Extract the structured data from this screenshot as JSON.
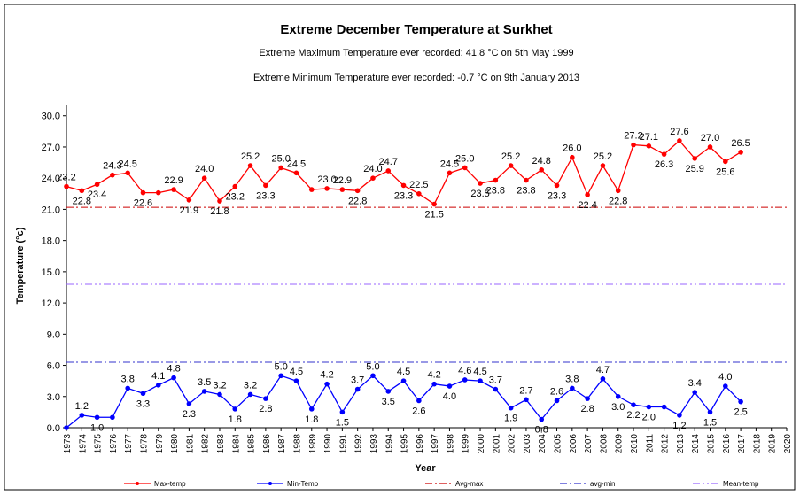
{
  "chart_data": {
    "type": "line",
    "title": "Extreme December Temperature at Surkhet",
    "subtitle": "Extreme Maximum  Temperature ever recorded: 41.8 °C on 5th May 1999",
    "subtitle2": "Extreme Minimum Temperature ever recorded: -0.7 °C on 9th January 2013",
    "x_label": "Year",
    "y_label": "Temperature (°c)",
    "x": [
      1973,
      1974,
      1975,
      1976,
      1977,
      1978,
      1979,
      1980,
      1981,
      1982,
      1983,
      1984,
      1985,
      1986,
      1987,
      1988,
      1989,
      1990,
      1991,
      1992,
      1993,
      1994,
      1995,
      1996,
      1997,
      1998,
      1999,
      2000,
      2001,
      2002,
      2003,
      2004,
      2005,
      2006,
      2007,
      2008,
      2009,
      2010,
      2011,
      2012,
      2013,
      2014,
      2015,
      2016,
      2017
    ],
    "series": [
      {
        "name": "Max-temp",
        "color": "#ff0000",
        "values": [
          23.2,
          22.8,
          23.4,
          24.3,
          24.5,
          22.6,
          22.6,
          22.9,
          21.9,
          24.0,
          21.8,
          23.2,
          25.2,
          23.3,
          25.0,
          24.5,
          22.9,
          23.0,
          22.9,
          22.8,
          24.0,
          24.7,
          23.3,
          22.5,
          21.5,
          24.5,
          25.0,
          23.5,
          23.8,
          25.2,
          23.8,
          24.8,
          23.3,
          26.0,
          22.4,
          25.2,
          22.8,
          27.2,
          27.1,
          26.3,
          27.6,
          25.9,
          27.0,
          25.6,
          26.5
        ],
        "value_labels": [
          "23.2",
          "22.8",
          "23.4",
          "24.3",
          "24.5",
          "22.6",
          null,
          "22.9",
          "21.9",
          "24.0",
          "21.8",
          "23.2",
          "25.2",
          "23.3",
          "25.0",
          "24.5",
          null,
          "23.0",
          "22.9",
          "22.8",
          "24.0",
          "24.7",
          "23.3",
          "22.5",
          "21.5",
          "24.5",
          "25.0",
          "23.5",
          "23.8",
          "25.2",
          "23.8",
          "24.8",
          "23.3",
          "26.0",
          "22.4",
          "25.2",
          "22.8",
          "27.2",
          "27.1",
          "26.3",
          "27.6",
          "25.9",
          "27.0",
          "25.6",
          "26.5"
        ]
      },
      {
        "name": "Min-Temp",
        "color": "#0000ff",
        "values": [
          0.0,
          1.2,
          1.0,
          1.0,
          3.8,
          3.3,
          4.1,
          4.8,
          2.3,
          3.5,
          3.2,
          1.8,
          3.2,
          2.8,
          5.0,
          4.5,
          1.8,
          4.2,
          1.5,
          3.7,
          5.0,
          3.5,
          4.5,
          2.6,
          4.2,
          4.0,
          4.6,
          4.5,
          3.7,
          1.9,
          2.7,
          0.8,
          2.6,
          3.8,
          2.8,
          4.7,
          3.0,
          2.2,
          2.0,
          2.0,
          1.2,
          3.4,
          1.5,
          4.0,
          2.5
        ],
        "value_labels": [
          null,
          "1.2",
          "1.0",
          null,
          "3.8",
          "3.3",
          "4.1",
          "4.8",
          "2.3",
          "3.5",
          "3.2",
          "1.8",
          "3.2",
          "2.8",
          "5.0",
          "4.5",
          "1.8",
          "4.2",
          "1.5",
          "3.7",
          "5.0",
          "3.5",
          "4.5",
          "2.6",
          "4.2",
          "4.0",
          "4.6",
          "4.5",
          "3.7",
          "1.9",
          "2.7",
          "0.8",
          "2.6",
          "3.8",
          "2.8",
          "4.7",
          "3.0",
          "2.2",
          "2.0",
          null,
          "1.2",
          "3.4",
          "1.5",
          "4.0",
          "2.5"
        ]
      }
    ],
    "reference_lines": [
      {
        "name": "Avg-max",
        "value": 21.2,
        "color": "#cc0000"
      },
      {
        "name": "avg-min",
        "value": 6.3,
        "color": "#3333cc"
      },
      {
        "name": "Mean-temp",
        "value": 13.8,
        "color": "#9966ff"
      }
    ],
    "xlim": [
      1973,
      2020
    ],
    "xticks": [
      1973,
      1974,
      1975,
      1976,
      1977,
      1978,
      1979,
      1980,
      1981,
      1982,
      1983,
      1984,
      1985,
      1986,
      1987,
      1988,
      1989,
      1990,
      1991,
      1992,
      1993,
      1994,
      1995,
      1996,
      1997,
      1998,
      1999,
      2000,
      2001,
      2002,
      2003,
      2004,
      2005,
      2006,
      2007,
      2008,
      2009,
      2010,
      2011,
      2012,
      2013,
      2014,
      2015,
      2016,
      2017,
      2018,
      2019,
      2020
    ],
    "ylim": [
      0,
      31
    ],
    "yticks": [
      {
        "value": 0,
        "label": "0.0"
      },
      {
        "value": 3,
        "label": "3.0"
      },
      {
        "value": 6,
        "label": "6.0"
      },
      {
        "value": 9,
        "label": "9.0"
      },
      {
        "value": 12,
        "label": "12.0"
      },
      {
        "value": 15,
        "label": "15.0"
      },
      {
        "value": 18,
        "label": "18.0"
      },
      {
        "value": 21,
        "label": "21.0"
      },
      {
        "value": 24,
        "label": "24.0"
      },
      {
        "value": 27,
        "label": "27.0"
      },
      {
        "value": 30,
        "label": "30.0"
      }
    ],
    "legend": "bottom"
  }
}
